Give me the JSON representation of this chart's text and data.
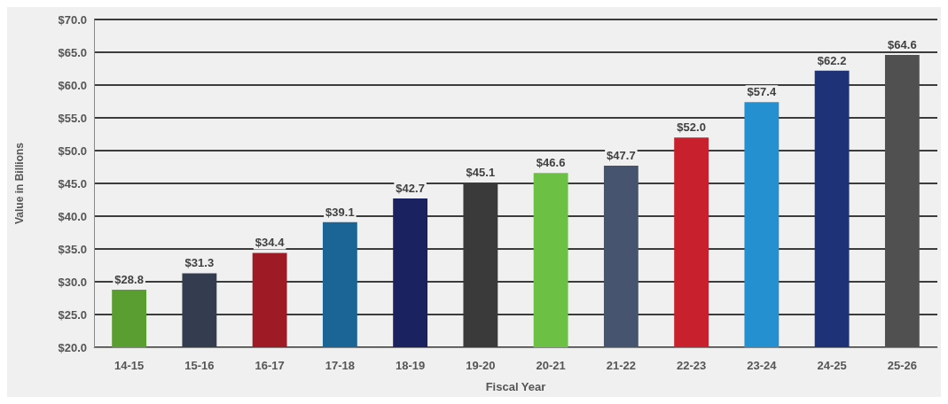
{
  "chart_data": {
    "type": "bar",
    "xlabel": "Fiscal Year",
    "ylabel": "Value in Billions",
    "categories": [
      "14-15",
      "15-16",
      "16-17",
      "17-18",
      "18-19",
      "19-20",
      "20-21",
      "21-22",
      "22-23",
      "23-24",
      "24-25",
      "25-26"
    ],
    "values": [
      28.8,
      31.3,
      34.4,
      39.1,
      42.7,
      45.1,
      46.6,
      47.7,
      52.0,
      57.4,
      62.2,
      64.6
    ],
    "colors": [
      "#5a9e32",
      "#333d4f",
      "#9e1b26",
      "#1a6496",
      "#1a2260",
      "#3a3a3a",
      "#6cc044",
      "#465470",
      "#c8202c",
      "#2490d0",
      "#1e3278",
      "#505050"
    ],
    "value_labels": [
      "$28.8",
      "$31.3",
      "$34.4",
      "$39.1",
      "$42.7",
      "$45.1",
      "$46.6",
      "$47.7",
      "$52.0",
      "$57.4",
      "$62.2",
      "$64.6"
    ],
    "ylim": [
      20,
      70
    ],
    "yticks": [
      {
        "value": 20,
        "label": "$20.0"
      },
      {
        "value": 25,
        "label": "$25.0"
      },
      {
        "value": 30,
        "label": "$30.0"
      },
      {
        "value": 35,
        "label": "$35.0"
      },
      {
        "value": 40,
        "label": "$40.0"
      },
      {
        "value": 45,
        "label": "$45.0"
      },
      {
        "value": 50,
        "label": "$50.0"
      },
      {
        "value": 55,
        "label": "$55.0"
      },
      {
        "value": 60,
        "label": "$60.0"
      },
      {
        "value": 65,
        "label": "$65.0"
      },
      {
        "value": 70,
        "label": "$70.0"
      }
    ],
    "grid": "y"
  }
}
